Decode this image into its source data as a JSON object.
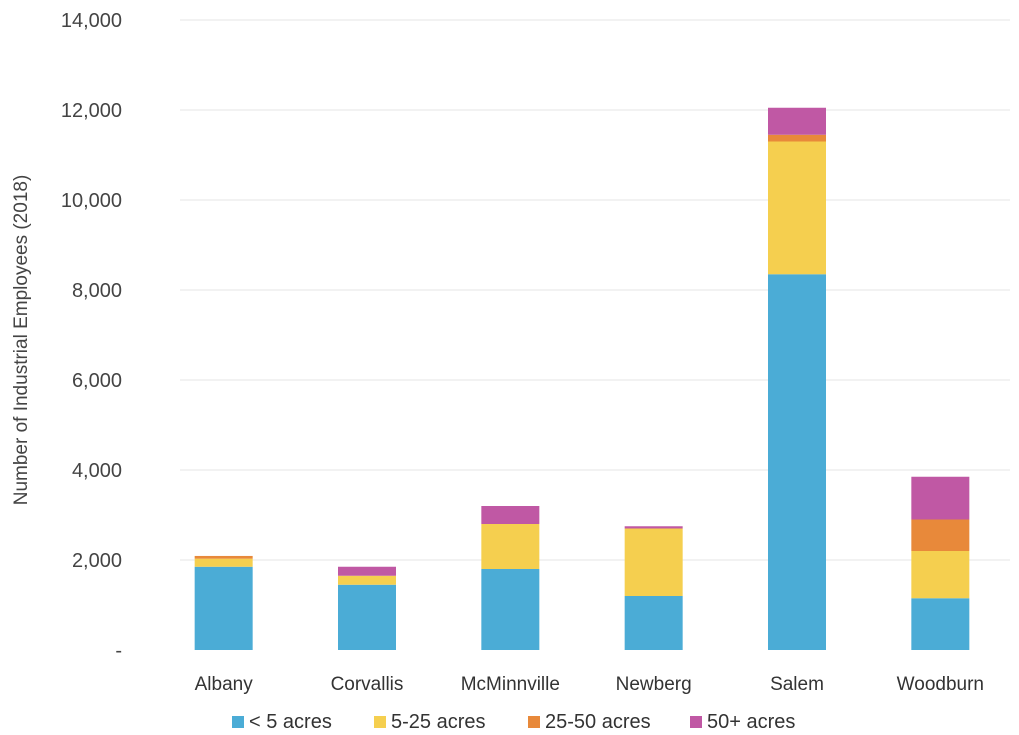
{
  "chart_data": {
    "type": "bar",
    "stacked": true,
    "categories": [
      "Albany",
      "Corvallis",
      "McMinnville",
      "Newberg",
      "Salem",
      "Woodburn"
    ],
    "series": [
      {
        "name": "< 5 acres",
        "color": "#4bacd6",
        "values": [
          1850,
          1450,
          1800,
          1200,
          8350,
          1150
        ]
      },
      {
        "name": "5-25 acres",
        "color": "#f5cf4f",
        "values": [
          180,
          200,
          1000,
          1500,
          2950,
          1050
        ]
      },
      {
        "name": "25-50 acres",
        "color": "#e8893a",
        "values": [
          60,
          0,
          0,
          0,
          150,
          700
        ]
      },
      {
        "name": "50+ acres",
        "color": "#c058a4",
        "values": [
          0,
          200,
          400,
          50,
          600,
          950
        ]
      }
    ],
    "ylabel": "Number of Industrial Employees (2018)",
    "ylim": [
      0,
      14000
    ],
    "yticks": [
      0,
      2000,
      4000,
      6000,
      8000,
      10000,
      12000,
      14000
    ],
    "ytick_labels": [
      "-",
      "2,000",
      "4,000",
      "6,000",
      "8,000",
      "10,000",
      "12,000",
      "14,000"
    ],
    "grid": true,
    "legend": "bottom"
  }
}
